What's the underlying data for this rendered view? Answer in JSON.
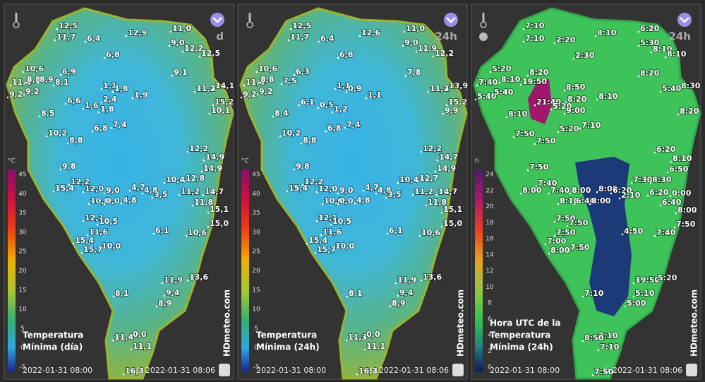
{
  "panels": [
    {
      "header": "d",
      "legend": {
        "unit": "°C",
        "ticks": [
          "45",
          "40",
          "35",
          "30",
          "25",
          "20",
          "15",
          "10",
          "5",
          "0",
          "-5"
        ]
      },
      "title": [
        "Temperatura",
        "Mínima (día)"
      ],
      "date": "2022-01-31 08:00",
      "copyright": "© 2022-01-31 08:06",
      "brand": "HDmeteo.com",
      "labels": [
        "12,5",
        "11,7",
        "6,4",
        "12,9",
        "11,0",
        "9,0",
        "12,2",
        "12,5",
        "6,8",
        "10,6",
        "6,9",
        "9,1",
        "11,4",
        "8,8",
        "8,9",
        "8,1",
        "9,2",
        "9,2",
        "1,1",
        "1,8",
        "1,9",
        "6,6",
        "2,4",
        "1,6",
        "1,8",
        "11,2",
        "14,1",
        "15,2",
        "10,1",
        "8,5",
        "6,8",
        "7,4",
        "10,2",
        "8,8",
        "12,2",
        "14,9",
        "14,9",
        "9,8",
        "12,2",
        "15,4",
        "12,0",
        "9,0",
        "4,7",
        "4,8",
        "3,5",
        "10,4",
        "12,8",
        "11,2",
        "14,7",
        "10,0",
        "0,0",
        "4,8",
        "11,8",
        "15,1",
        "12,1",
        "10,5",
        "15,0",
        "11,6",
        "6,1",
        "10,6",
        "15,4",
        "15,7",
        "10,0",
        "11,9",
        "13,6",
        "9,4",
        "8,1",
        "8,9",
        "11,4",
        "0,0",
        "11,1",
        "16,3"
      ]
    },
    {
      "header": "24h",
      "legend": {
        "unit": "°C",
        "ticks": [
          "45",
          "40",
          "35",
          "30",
          "25",
          "20",
          "15",
          "10",
          "5",
          "0",
          "-5"
        ]
      },
      "title": [
        "Temperatura",
        "Mínima (24h)"
      ],
      "date": "2022-01-31 08:00",
      "copyright": "© 2022-01-31 08:06",
      "brand": "HDmeteo.com",
      "labels": [
        "12,5",
        "11,7",
        "6,4",
        "12,6",
        "11,0",
        "9,0",
        "11,9",
        "12,2",
        "6,8",
        "10,6",
        "6,3",
        "7,8",
        "11,4",
        "8,8",
        "7,5",
        "9,2",
        "9,2",
        "1,1",
        "0,9",
        "1,1",
        "6,1",
        "0,5",
        "1,2",
        "11,2",
        "13,9",
        "15,2",
        "9,9",
        "8,4",
        "6,8",
        "7,4",
        "10,2",
        "8,8",
        "12,2",
        "14,7",
        "14,9",
        "9,8",
        "12,2",
        "15,4",
        "12,0",
        "9,0",
        "4,7",
        "4,8",
        "3,5",
        "10,4",
        "12,7",
        "11,2",
        "14,7",
        "10,0",
        "0,0",
        "4,8",
        "11,8",
        "15,1",
        "12,1",
        "10,5",
        "15,0",
        "11,6",
        "6,1",
        "10,6",
        "15,4",
        "15,7",
        "10,0",
        "11,9",
        "13,6",
        "9,4",
        "8,1",
        "8,9",
        "11,3",
        "0,0",
        "11,1",
        "16,3"
      ]
    },
    {
      "header": "24h",
      "legend": {
        "unit": "h",
        "ticks": [
          "24",
          "22",
          "20",
          "18",
          "16",
          "14",
          "12",
          "10",
          "8",
          "6",
          "4",
          "2",
          "0"
        ]
      },
      "title": [
        "Hora UTC de la",
        "Temperatura",
        "Mínima (24h)"
      ],
      "date": "2022-01-31 08:00",
      "copyright": "© 2022-01-31 08:06",
      "brand": "HDmeteo.com",
      "labels": [
        "7:10",
        "2:20",
        "8:10",
        "6:20",
        "7:10",
        "5:30",
        "8:10",
        "2:30",
        "8:10",
        "5:20",
        "8:20",
        "8:20",
        "7:40",
        "8:10",
        "19:50",
        "5:40",
        "5:40",
        "8:50",
        "8:30",
        "5:40",
        "8:20",
        "8:10",
        "21:40",
        "5:20",
        "9:00",
        "8:20",
        "8:10",
        "5:20",
        "7:10",
        "7:50",
        "7:50",
        "6:20",
        "8:10",
        "6:50",
        "7:50",
        "7:30",
        "8:30",
        "7:40",
        "8:00",
        "7:40",
        "8:00",
        "8:00",
        "6:20",
        "6:20",
        "0:00",
        "8:10",
        "6:40",
        "8:00",
        "2:10",
        "6:40",
        "8:00",
        "7:50",
        "7:50",
        "7:50",
        "7:50",
        "4:50",
        "7:40",
        "7:00",
        "8:00",
        "7:50",
        "19:50",
        "5:20",
        "5:10",
        "7:10",
        "5:00",
        "7:10",
        "8:50",
        "7:10",
        "7:50"
      ]
    }
  ]
}
